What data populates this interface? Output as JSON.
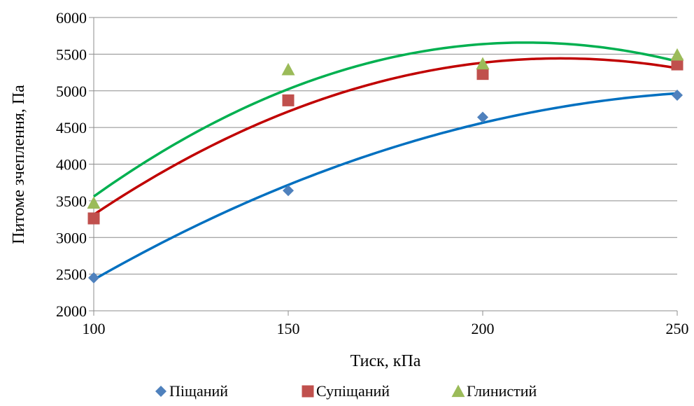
{
  "chart_data": {
    "type": "scatter",
    "xlabel": "Тиск, кПа",
    "ylabel": "Питоме зчеплення, Па",
    "xlim": [
      100,
      250
    ],
    "ylim": [
      2000,
      6000
    ],
    "x_ticks": [
      100,
      150,
      200,
      250
    ],
    "y_ticks": [
      2000,
      2500,
      3000,
      3500,
      4000,
      4500,
      5000,
      5500,
      6000
    ],
    "grid": "horizontal",
    "legend_position": "bottom",
    "trendline": "polynomial (order 2)",
    "series": [
      {
        "name": "Піщаний",
        "marker": "diamond",
        "color": "#4F81BD",
        "trend_color": "#0070C0",
        "x": [
          100,
          150,
          200,
          250
        ],
        "y": [
          2450,
          3640,
          4640,
          4940
        ]
      },
      {
        "name": "Супіщаний",
        "marker": "square",
        "color": "#C0504D",
        "trend_color": "#C00000",
        "x": [
          100,
          150,
          200,
          250
        ],
        "y": [
          3260,
          4870,
          5230,
          5360
        ]
      },
      {
        "name": "Глинистий",
        "marker": "triangle",
        "color": "#9BBB59",
        "trend_color": "#00B050",
        "x": [
          100,
          150,
          200,
          250
        ],
        "y": [
          3470,
          5290,
          5370,
          5490
        ]
      }
    ]
  }
}
